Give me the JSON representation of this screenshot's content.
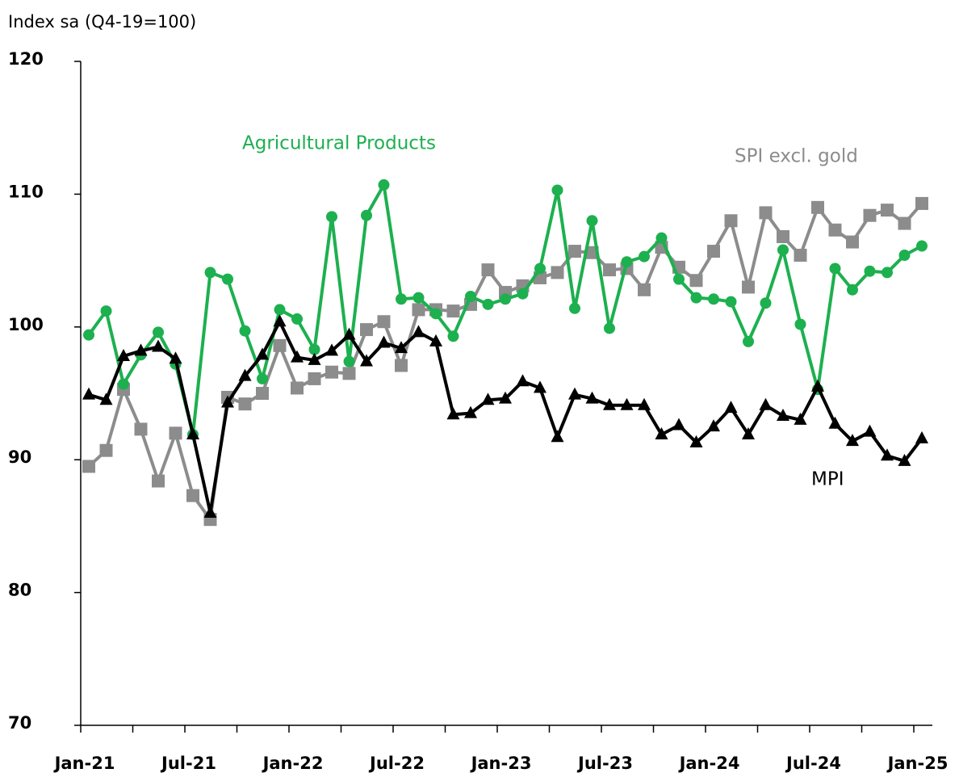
{
  "chart_data": {
    "type": "line",
    "y_axis_label": "Index sa (Q4-19=100)",
    "categories": [
      "Jan-21",
      null,
      null,
      null,
      null,
      null,
      "Jul-21",
      null,
      null,
      null,
      null,
      null,
      "Jan-22",
      null,
      null,
      null,
      null,
      null,
      "Jul-22",
      null,
      null,
      null,
      null,
      null,
      "Jan-23",
      null,
      null,
      null,
      null,
      null,
      "Jul-23",
      null,
      null,
      null,
      null,
      null,
      "Jan-24",
      null,
      null,
      null,
      null,
      null,
      "Jul-24",
      null,
      null,
      null,
      null,
      null,
      "Jan-25"
    ],
    "ylim": [
      70,
      120
    ],
    "yticks": [
      70,
      80,
      90,
      100,
      110,
      120
    ],
    "series": [
      {
        "name": "SPI excl. gold",
        "color": "#8c8c8c",
        "marker": "square",
        "values": [
          89.5,
          90.7,
          95.3,
          92.3,
          88.4,
          92.0,
          87.3,
          85.5,
          94.7,
          94.2,
          95.0,
          98.6,
          95.4,
          96.1,
          96.6,
          96.5,
          99.8,
          100.4,
          97.1,
          101.3,
          101.3,
          101.2,
          101.7,
          104.3,
          102.6,
          103.1,
          103.7,
          104.1,
          105.7,
          105.6,
          104.3,
          104.4,
          102.8,
          106.0,
          104.5,
          103.5,
          105.7,
          108.0,
          103.0,
          108.6,
          106.8,
          105.4,
          109.0,
          107.3,
          106.4,
          108.4,
          108.8,
          107.8,
          109.3
        ]
      },
      {
        "name": "Agricultural Products",
        "color": "#1db04f",
        "marker": "circle",
        "values": [
          99.4,
          101.2,
          95.7,
          97.9,
          99.6,
          97.2,
          91.9,
          104.1,
          103.6,
          99.7,
          96.1,
          101.3,
          100.6,
          98.3,
          108.3,
          97.4,
          108.4,
          110.7,
          102.1,
          102.2,
          101.0,
          99.3,
          102.3,
          101.7,
          102.1,
          102.5,
          104.4,
          110.3,
          101.4,
          108.0,
          99.9,
          104.9,
          105.3,
          106.7,
          103.6,
          102.2,
          102.1,
          101.9,
          98.9,
          101.8,
          105.8,
          100.2,
          95.3,
          104.4,
          102.8,
          104.2,
          104.1,
          105.4,
          106.1
        ]
      },
      {
        "name": "MPI",
        "color": "#000000",
        "marker": "triangle",
        "values": [
          94.9,
          94.5,
          97.8,
          98.2,
          98.5,
          97.6,
          91.9,
          86.0,
          94.3,
          96.3,
          97.9,
          100.4,
          97.7,
          97.5,
          98.2,
          99.4,
          97.4,
          98.8,
          98.4,
          99.6,
          98.9,
          93.4,
          93.5,
          94.5,
          94.6,
          95.9,
          95.4,
          91.7,
          94.9,
          94.6,
          94.1,
          94.1,
          94.1,
          91.9,
          92.6,
          91.3,
          92.5,
          93.9,
          91.9,
          94.1,
          93.3,
          93.0,
          95.5,
          92.7,
          91.4,
          92.1,
          90.3,
          89.9,
          91.6
        ]
      }
    ]
  }
}
